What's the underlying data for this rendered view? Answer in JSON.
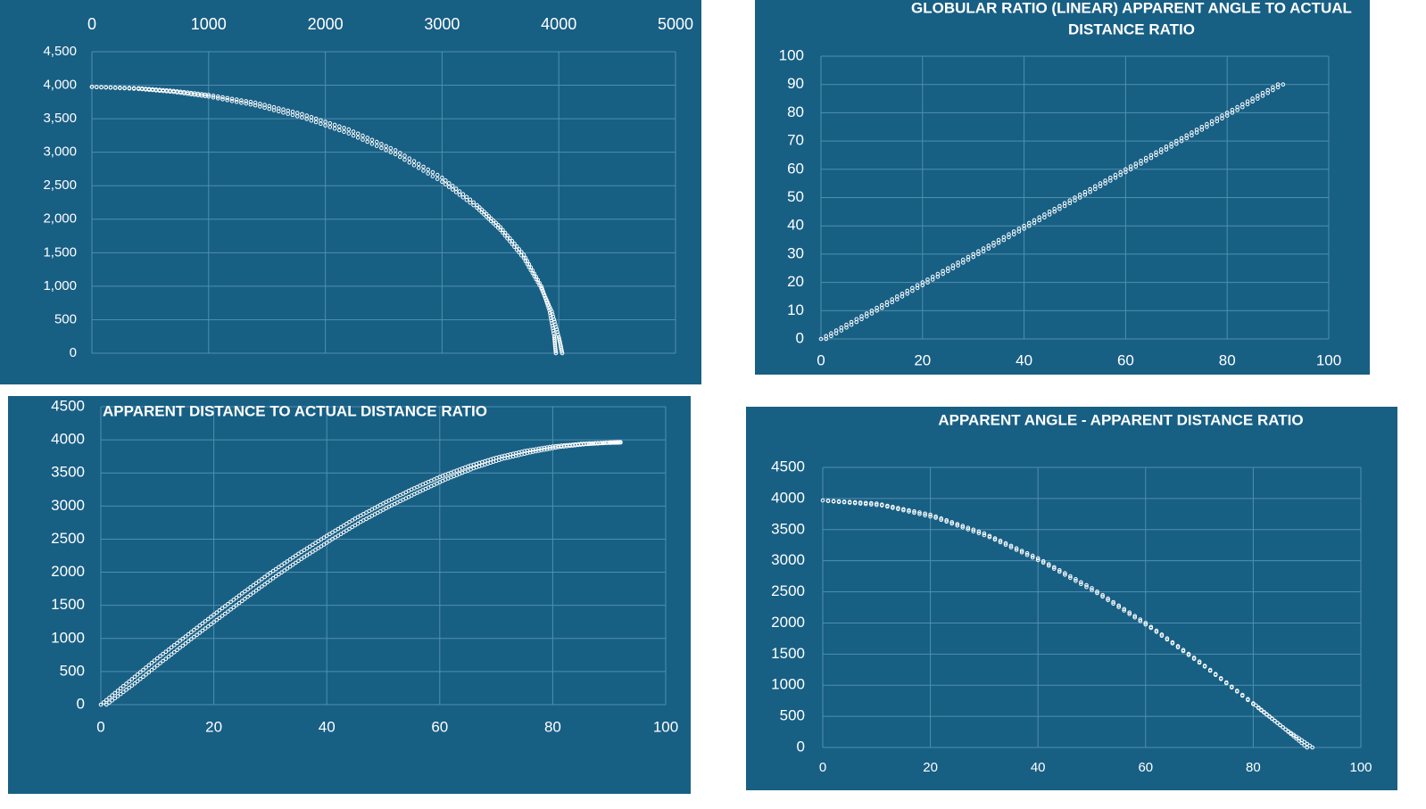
{
  "colors": {
    "panel": "#185f84",
    "grid": "#4f8fae",
    "marks": "#ffffff"
  },
  "chart_data": [
    {
      "id": "chart1",
      "type": "scatter",
      "title": "",
      "x_axis": {
        "range": [
          0,
          5000
        ],
        "ticks": [
          "0",
          "1000",
          "2000",
          "3000",
          "4000",
          "5000"
        ],
        "position": "top"
      },
      "y_axis": {
        "range": [
          0,
          4500
        ],
        "ticks": [
          "0",
          "500",
          "1,000",
          "1,500",
          "2,000",
          "2,500",
          "3,000",
          "3,500",
          "4,000",
          "4,500"
        ]
      },
      "grid": true,
      "series": [
        {
          "x": [
            0,
            400,
            700,
            1000,
            1400,
            1800,
            2200,
            2600,
            3000,
            3300,
            3500,
            3700,
            3850,
            3920,
            3960,
            3975
          ],
          "y": [
            3975,
            3955,
            3915,
            3855,
            3740,
            3570,
            3340,
            3030,
            2620,
            2210,
            1880,
            1470,
            1000,
            640,
            260,
            0
          ]
        },
        {
          "x": [
            0,
            400,
            700,
            1000,
            1400,
            1800,
            2200,
            2600,
            3000,
            3300,
            3500,
            3700,
            3850,
            3940,
            4000,
            4030
          ],
          "y": [
            3975,
            3945,
            3900,
            3830,
            3700,
            3520,
            3280,
            2970,
            2560,
            2170,
            1840,
            1420,
            970,
            620,
            240,
            0
          ]
        }
      ]
    },
    {
      "id": "chart2",
      "type": "scatter",
      "title": "GLOBULAR RATIO (LINEAR)  APPARENT ANGLE TO ACTUAL DISTANCE RATIO",
      "title_lines": [
        "GLOBULAR RATIO (LINEAR)  APPARENT ANGLE TO ACTUAL",
        "DISTANCE RATIO"
      ],
      "x_axis": {
        "range": [
          0,
          100
        ],
        "ticks": [
          "0",
          "20",
          "40",
          "60",
          "80",
          "100"
        ]
      },
      "y_axis": {
        "range": [
          0,
          100
        ],
        "ticks": [
          "0",
          "10",
          "20",
          "30",
          "40",
          "50",
          "60",
          "70",
          "80",
          "90",
          "100"
        ]
      },
      "grid": true,
      "series": [
        {
          "x": [
            0,
            10,
            20,
            30,
            40,
            50,
            60,
            70,
            80,
            90
          ],
          "y": [
            0,
            10,
            20,
            30,
            40,
            50,
            60,
            70,
            80,
            90
          ]
        },
        {
          "x": [
            1,
            11,
            21,
            31,
            41,
            51,
            61,
            71,
            81,
            91
          ],
          "y": [
            0,
            10,
            20,
            30,
            40,
            50,
            60,
            70,
            80,
            90
          ]
        }
      ]
    },
    {
      "id": "chart3",
      "type": "scatter",
      "title": "APPARENT DISTANCE TO ACTUAL DISTANCE RATIO",
      "x_axis": {
        "range": [
          0,
          100
        ],
        "ticks": [
          "0",
          "20",
          "40",
          "60",
          "80",
          "100"
        ]
      },
      "y_axis": {
        "range": [
          0,
          4500
        ],
        "ticks": [
          "0",
          "500",
          "1000",
          "1500",
          "2000",
          "2500",
          "3000",
          "3500",
          "4000",
          "4500"
        ]
      },
      "grid": true,
      "series": [
        {
          "x": [
            0,
            5,
            10,
            15,
            20,
            25,
            30,
            35,
            40,
            45,
            50,
            55,
            60,
            65,
            70,
            75,
            80,
            85,
            90,
            92
          ],
          "y": [
            0,
            350,
            700,
            1030,
            1360,
            1680,
            1990,
            2280,
            2550,
            2810,
            3040,
            3250,
            3440,
            3600,
            3730,
            3830,
            3900,
            3940,
            3960,
            3965
          ]
        },
        {
          "x": [
            1,
            6,
            11,
            16,
            21,
            26,
            31,
            36,
            41,
            46,
            51,
            56,
            61,
            66,
            71,
            76,
            81,
            86,
            90,
            92
          ],
          "y": [
            0,
            320,
            660,
            990,
            1310,
            1630,
            1940,
            2230,
            2500,
            2760,
            2990,
            3200,
            3400,
            3570,
            3710,
            3810,
            3890,
            3935,
            3955,
            3960
          ]
        }
      ]
    },
    {
      "id": "chart4",
      "type": "scatter",
      "title": "APPARENT  ANGLE - APPARENT DISTANCE RATIO",
      "x_axis": {
        "range": [
          0,
          100
        ],
        "ticks": [
          "0",
          "20",
          "40",
          "60",
          "80",
          "100"
        ]
      },
      "y_axis": {
        "range": [
          0,
          4500
        ],
        "ticks": [
          "0",
          "500",
          "1000",
          "1500",
          "2000",
          "2500",
          "3000",
          "3500",
          "4000",
          "4500"
        ]
      },
      "grid": true,
      "series": [
        {
          "x": [
            0,
            10,
            20,
            30,
            40,
            50,
            60,
            70,
            80,
            85,
            90
          ],
          "y": [
            3970,
            3920,
            3740,
            3440,
            3040,
            2560,
            2000,
            1380,
            710,
            360,
            0
          ]
        },
        {
          "x": [
            1,
            11,
            21,
            31,
            41,
            51,
            61,
            71,
            81,
            86,
            91
          ],
          "y": [
            3960,
            3890,
            3690,
            3380,
            2970,
            2480,
            1920,
            1300,
            630,
            290,
            0
          ]
        }
      ]
    }
  ]
}
